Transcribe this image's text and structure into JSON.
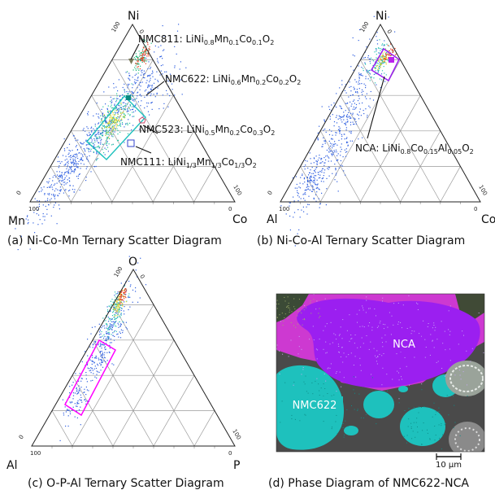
{
  "panels": {
    "a": {
      "vertices": {
        "top": "Ni",
        "left": "Mn",
        "right": "Co"
      },
      "caption": "(a) Ni-Co-Mn Ternary Scatter Diagram",
      "annotations": [
        {
          "label": "NMC811",
          "formula": [
            [
              "LiNi",
              ""
            ],
            [
              "0.8",
              "sub"
            ],
            [
              "Mn",
              ""
            ],
            [
              "0.1",
              "sub"
            ],
            [
              "Co",
              ""
            ],
            [
              "0.1",
              "sub"
            ],
            [
              "O",
              ""
            ],
            [
              "2",
              "sub"
            ]
          ]
        },
        {
          "label": "NMC622",
          "formula": [
            [
              "LiNi",
              ""
            ],
            [
              "0.6",
              "sub"
            ],
            [
              "Mn",
              ""
            ],
            [
              "0.2",
              "sub"
            ],
            [
              "Co",
              ""
            ],
            [
              "0.2",
              "sub"
            ],
            [
              "O",
              ""
            ],
            [
              "2",
              "sub"
            ]
          ]
        },
        {
          "label": "NMC523",
          "formula": [
            [
              "LiNi",
              ""
            ],
            [
              "0.5",
              "sub"
            ],
            [
              "Mn",
              ""
            ],
            [
              "0.2",
              "sub"
            ],
            [
              "Co",
              ""
            ],
            [
              "0.3",
              "sub"
            ],
            [
              "O",
              ""
            ],
            [
              "2",
              "sub"
            ]
          ]
        },
        {
          "label": "NMC111",
          "formula": [
            [
              "LiNi",
              ""
            ],
            [
              "1/3",
              "sub"
            ],
            [
              "Mn",
              ""
            ],
            [
              "1/3",
              "sub"
            ],
            [
              "Co",
              ""
            ],
            [
              "1/3",
              "sub"
            ],
            [
              "O",
              ""
            ],
            [
              "2",
              "sub"
            ]
          ]
        }
      ]
    },
    "b": {
      "vertices": {
        "top": "Ni",
        "left": "Al",
        "right": "Co"
      },
      "caption": "(b) Ni-Co-Al Ternary Scatter Diagram",
      "annotations": [
        {
          "label": "NCA",
          "formula": [
            [
              "LiNi",
              ""
            ],
            [
              "0.8",
              "sub"
            ],
            [
              "Co",
              ""
            ],
            [
              "0.15",
              "sub"
            ],
            [
              "Al",
              ""
            ],
            [
              "0.05",
              "sub"
            ],
            [
              "O",
              ""
            ],
            [
              "2",
              "sub"
            ]
          ]
        }
      ]
    },
    "c": {
      "vertices": {
        "top": "O",
        "left": "Al",
        "right": "P"
      },
      "caption": "(c) O-P-Al Ternary Scatter Diagram"
    },
    "d": {
      "caption": "(d) Phase Diagram of NMC622-NCA",
      "labels": {
        "nca": "NCA",
        "nmc622": "NMC622"
      },
      "scale_bar": "10 µm"
    }
  },
  "ticks": {
    "zero": "0",
    "hundred": "100"
  },
  "colors": {
    "nca_phase": "#9b1ff0",
    "nmc622_phase": "#1ec1bd",
    "magenta": "#ff00ff",
    "scatter_blue": "#2f5fe0",
    "marker_gray": "#7a7a5a"
  }
}
